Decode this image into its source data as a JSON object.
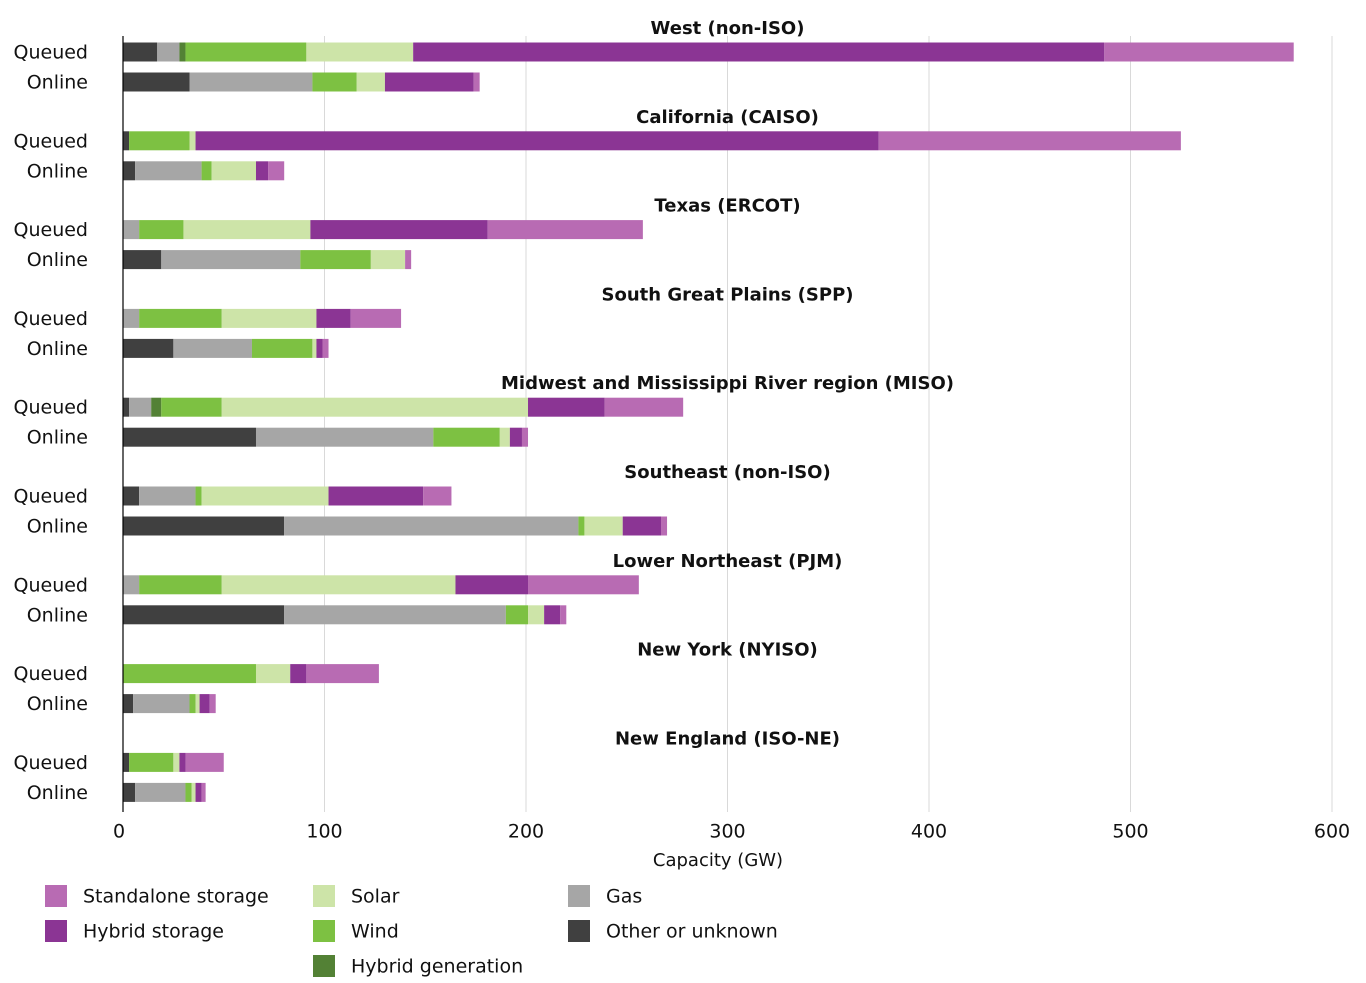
{
  "chart_data": {
    "type": "bar",
    "orientation": "horizontal",
    "stacked": true,
    "xlabel": "Capacity  (GW)",
    "xlim": [
      0,
      600
    ],
    "xticks": [
      0,
      100,
      200,
      300,
      400,
      500,
      600
    ],
    "grid": "vertical",
    "legend_position": "bottom-left",
    "row_labels": [
      "Queued",
      "Online"
    ],
    "series": [
      {
        "key": "other",
        "name": "Other or unknown",
        "color": "#404040"
      },
      {
        "key": "gas",
        "name": "Gas",
        "color": "#a6a6a6"
      },
      {
        "key": "hybrid_generation",
        "name": "Hybrid generation",
        "color": "#538135"
      },
      {
        "key": "wind",
        "name": "Wind",
        "color": "#7dc142"
      },
      {
        "key": "solar",
        "name": "Solar",
        "color": "#cde4a8"
      },
      {
        "key": "hybrid_storage",
        "name": "Hybrid storage",
        "color": "#8b3594"
      },
      {
        "key": "standalone_storage",
        "name": "Standalone storage",
        "color": "#b86bb3"
      }
    ],
    "legend_order": [
      [
        "standalone_storage",
        "hybrid_storage"
      ],
      [
        "solar",
        "wind",
        "hybrid_generation"
      ],
      [
        "gas",
        "other"
      ]
    ],
    "groups": [
      {
        "title": "West (non-ISO)",
        "queued": [
          17,
          11,
          3,
          60,
          53,
          343,
          94
        ],
        "online": [
          33,
          61,
          0,
          22,
          14,
          44,
          3
        ]
      },
      {
        "title": "California (CAISO)",
        "queued": [
          3,
          0,
          0,
          30,
          3,
          339,
          150
        ],
        "online": [
          6,
          33,
          0,
          5,
          22,
          6,
          8
        ]
      },
      {
        "title": "Texas (ERCOT)",
        "queued": [
          0,
          8,
          0,
          22,
          63,
          88,
          77
        ],
        "online": [
          19,
          69,
          0,
          35,
          17,
          0,
          3
        ]
      },
      {
        "title": "South Great Plains (SPP)",
        "queued": [
          0,
          8,
          0,
          41,
          47,
          17,
          25
        ],
        "online": [
          25,
          39,
          0,
          30,
          2,
          3,
          3
        ]
      },
      {
        "title": "Midwest and Mississippi River region (MISO)",
        "queued": [
          3,
          11,
          5,
          30,
          152,
          38,
          39
        ],
        "online": [
          66,
          88,
          0,
          33,
          5,
          6,
          3
        ]
      },
      {
        "title": "Southeast (non-ISO)",
        "queued": [
          8,
          28,
          0,
          3,
          63,
          47,
          14
        ],
        "online": [
          80,
          146,
          0,
          3,
          19,
          19,
          3
        ]
      },
      {
        "title": "Lower Northeast (PJM)",
        "queued": [
          0,
          8,
          0,
          41,
          116,
          36,
          55
        ],
        "online": [
          80,
          110,
          0,
          11,
          8,
          8,
          3
        ]
      },
      {
        "title": "New York (NYISO)",
        "queued": [
          0,
          0,
          0,
          66,
          17,
          8,
          36
        ],
        "online": [
          5,
          28,
          0,
          3,
          2,
          5,
          3
        ]
      },
      {
        "title": "New England (ISO-NE)",
        "queued": [
          3,
          0,
          0,
          22,
          3,
          3,
          19
        ],
        "online": [
          6,
          25,
          0,
          3,
          2,
          3,
          2
        ]
      }
    ]
  }
}
